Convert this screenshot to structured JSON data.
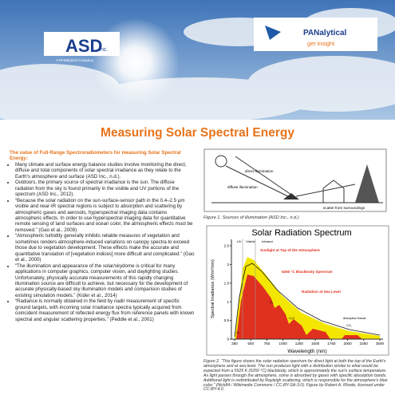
{
  "header": {
    "asd_logo": "ASD",
    "asd_suffix": "Inc.",
    "asd_tagline": "A PANalytical Company",
    "pan_logo": "PANalytical",
    "pan_tagline": "get insight"
  },
  "title": "Measuring Solar Spectral Energy",
  "intro": "The value of Full-Range Spectroradiometers for measuring Solar Spectral Energy:",
  "bullets": [
    "Many climate and surface energy balance studies involve monitoring the direct, diffuse and total components of solar spectral irradiance as they relate to the Earth's atmosphere and surface (ASD Inc., n.d.).",
    "Outdoors, the primary source of spectral irradiance is the sun. The diffuse radiation from the sky is found primarily in the visible and UV portions of the spectrum (ASD Inc., 2012).",
    "“Because the solar radiation on the sun-surface-sensor path in the 0.4–2.5 µm visible and near-IR spectral regions is subject to absorption and scattering by atmospheric gases and aerosols, hyperspectral imaging data contains atmospheric effects. In order to use hyperspectral imaging data for quantitative remote sensing of land surfaces and ocean color, the atmospheric effects must be removed.” (Gao et al., 2009)",
    "“Atmospheric turbidity generally inhibits reliable measures of vegetation and sometimes renders atmosphere-induced variations on canopy spectra to exceed those due to vegetation development. These effects make the accurate and quantitative translation of [vegetation indices] more difficult and complicated.” (Gao et al., 2000)",
    "“The illumination and appearance of the solar/skydome is critical for many applications in computer graphics, computer vision, and daylighting studies. Unfortunately, physically accurate measurements of this rapidly changing illumination source are difficult to achieve, but necessary for the development of accurate physically-based sky illumination models and comparison studies of existing simulation models.” (Kider et al., 2014)",
    "“Radiance is normally obtained in the field by nadir measurement of specific ground targets, with incoming solar irradiance spectra typically acquired from coincident measurement of reflected energy flux from reference panels with known spectral and angular scattering properties.” (Peddle et al., 2001)"
  ],
  "figure1": {
    "labels": [
      "direct illumination",
      "diffuse illumination",
      "scatter from surroundings"
    ],
    "caption": "Figure 1. Sources of illumination (ASD Inc., n.d.)"
  },
  "figure2": {
    "title": "Solar Radiation Spectrum",
    "y_label": "Spectral Irradiance (W/m²/nm)",
    "x_label": "Wavelength (nm)",
    "regions": [
      "UV",
      "Visible",
      "Infrared"
    ],
    "annotations": [
      "Sunlight at Top of the Atmosphere",
      "5250 °C Blackbody Spectrum",
      "Radiation at Sea Level",
      "Absorption Bands",
      "H₂O",
      "O₂",
      "CO₂",
      "O₃"
    ],
    "xticks": [
      250,
      500,
      750,
      1000,
      1250,
      1500,
      1750,
      2000,
      2250,
      2500
    ],
    "yticks": [
      0,
      0.5,
      1,
      1.5,
      2,
      2.5
    ],
    "caption": "Figure 2. “This figure shows the solar radiation spectrum for direct light at both the top of the Earth's atmosphere and at sea level. The sun produces light with a distribution similar to what would be expected from a 5525 K (5250 °C) blackbody, which is approximately the sun's surface temperature. As light passes through the atmosphere, some is absorbed by gases with specific absorption bands. Additional light is redistributed by Rayleigh scattering, which is responsible for the atmosphere's blue color.” (Nick84 / Wikimedia Commons / CC-BY-SA-3.0). Figure by Robert A. Rhode, licensed under CC-BY-4.0."
  }
}
